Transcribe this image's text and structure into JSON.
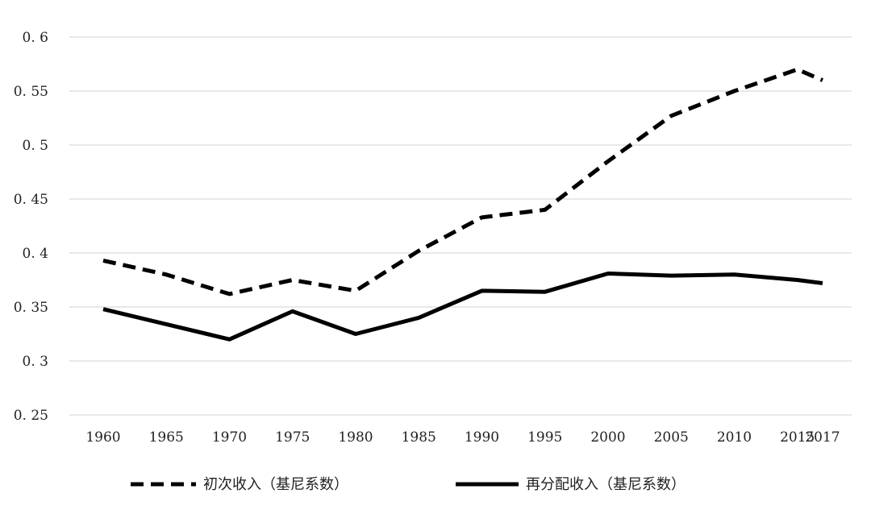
{
  "chart_data": {
    "type": "line",
    "x": [
      "1960",
      "1965",
      "1970",
      "1975",
      "1980",
      "1985",
      "1990",
      "1995",
      "2000",
      "2005",
      "2010",
      "2015",
      "2017"
    ],
    "series": [
      {
        "name": "初次收入（基尼系数）",
        "values": [
          0.393,
          0.38,
          0.362,
          0.375,
          0.365,
          0.402,
          0.433,
          0.44,
          0.485,
          0.527,
          0.55,
          0.57,
          0.56
        ],
        "style": "dashed",
        "color": "#000000"
      },
      {
        "name": "再分配收入（基尼系数）",
        "values": [
          0.348,
          0.334,
          0.32,
          0.346,
          0.325,
          0.34,
          0.365,
          0.364,
          0.381,
          0.379,
          0.38,
          0.375,
          0.372
        ],
        "style": "solid",
        "color": "#000000"
      }
    ],
    "y_ticks": [
      "0. 25",
      "0. 3",
      "0. 35",
      "0. 4",
      "0. 45",
      "0. 5",
      "0. 55",
      "0. 6"
    ],
    "ylim": [
      0.25,
      0.6
    ],
    "grid": true,
    "gridline_color": "#d9d9d9",
    "legend_position": "bottom"
  }
}
